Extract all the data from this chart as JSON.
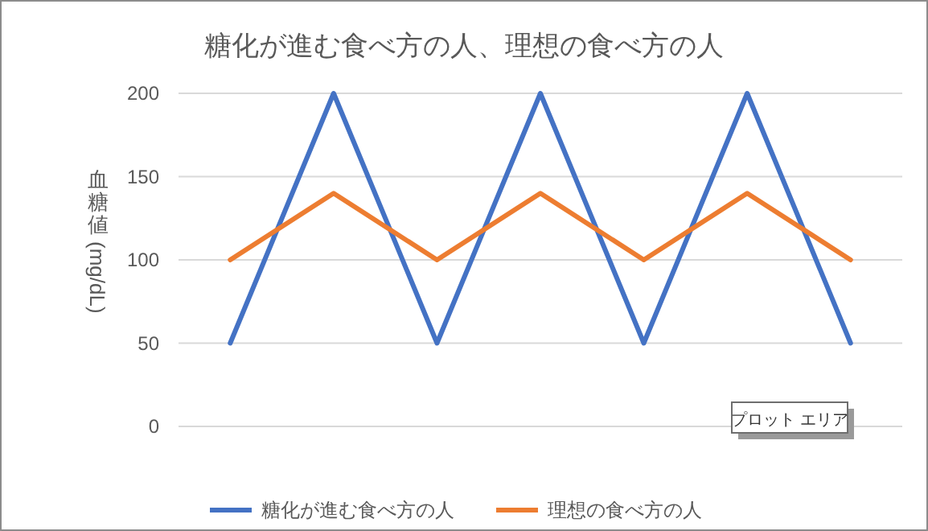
{
  "chart_data": {
    "type": "line",
    "title": "糖化が進む食べ方の人、理想の食べ方の人",
    "ylabel": "血糖値 (mg/dL)",
    "categories": [
      null,
      null,
      null,
      null,
      null,
      null,
      null
    ],
    "series": [
      {
        "name": "糖化が進む食べ方の人",
        "color": "#4472c4",
        "values": [
          50,
          200,
          50,
          200,
          50,
          200,
          50
        ]
      },
      {
        "name": "理想の食べ方の人",
        "color": "#ed7d31",
        "values": [
          100,
          140,
          100,
          140,
          100,
          140,
          100
        ]
      }
    ],
    "ylim": [
      0,
      200
    ],
    "yticks": [
      0,
      50,
      100,
      150,
      200
    ],
    "grid": "y",
    "legend": "bottom",
    "marker": "none",
    "line_style": "solid",
    "annotations": [
      "プロット エリア"
    ]
  }
}
